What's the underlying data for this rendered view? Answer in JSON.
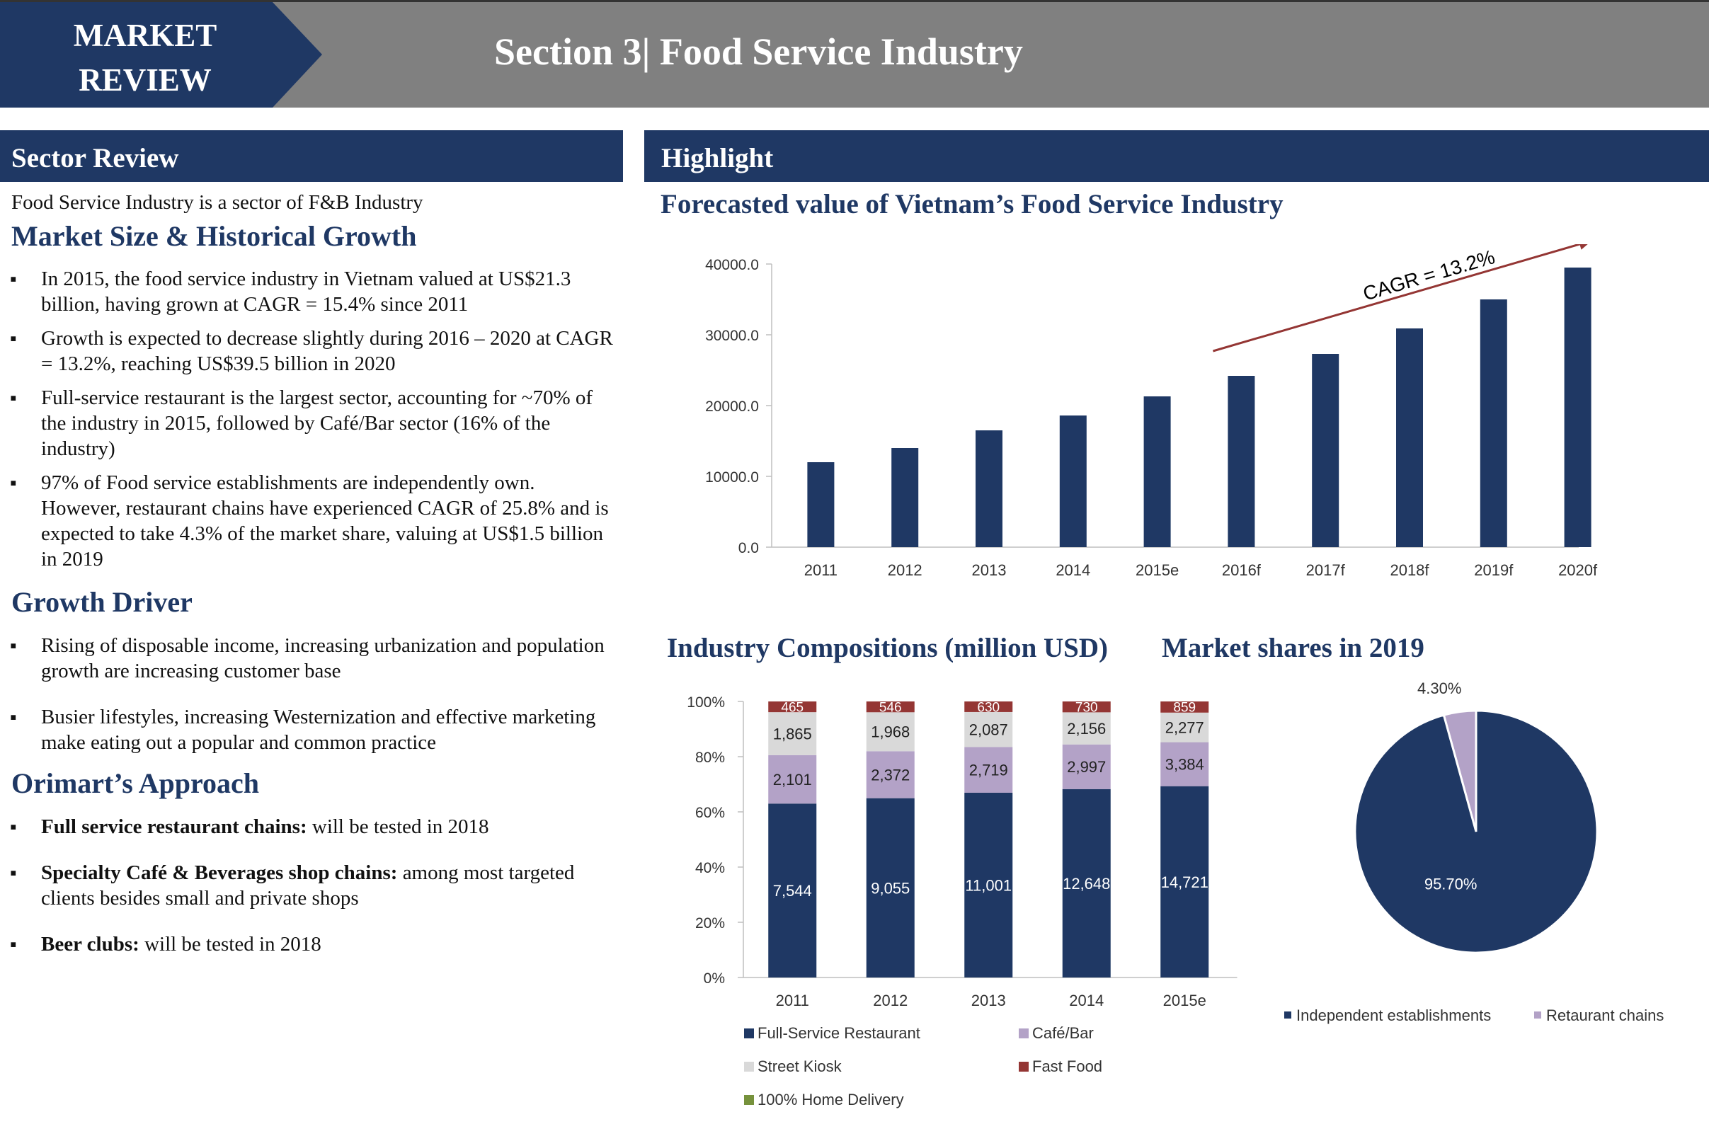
{
  "header": {
    "tag_line1": "MARKET",
    "tag_line2": "REVIEW",
    "title": "Section 3| Food Service Industry"
  },
  "left": {
    "heading": "Sector Review",
    "intro": "Food Service Industry is a sector of F&B Industry",
    "market_size": {
      "title": "Market Size & Historical Growth",
      "bullets": [
        "In 2015, the food service industry in Vietnam valued at US$21.3 billion, having grown at CAGR = 15.4% since 2011",
        "Growth is expected to decrease slightly during 2016 – 2020 at CAGR = 13.2%, reaching US$39.5 billion in 2020",
        "Full-service restaurant is the largest sector, accounting for ~70% of the industry in 2015, followed by Café/Bar sector (16% of the industry)",
        "97% of Food service establishments are independently own. However, restaurant chains have experienced CAGR of 25.8% and is expected to take 4.3% of the market share, valuing at US$1.5 billion in 2019"
      ]
    },
    "growth_driver": {
      "title": "Growth Driver",
      "bullets": [
        "Rising of disposable income, increasing urbanization and population growth are increasing customer base",
        "Busier lifestyles, increasing Westernization and effective marketing make eating out a popular and common practice"
      ]
    },
    "approach": {
      "title": "Orimart’s Approach",
      "items": [
        {
          "label": "Full service restaurant chains:",
          "text": " will be tested in 2018"
        },
        {
          "label": "Specialty Café & Beverages shop chains:",
          "text": " among most targeted clients besides small and private shops"
        },
        {
          "label": "Beer clubs:",
          "text": " will be tested in 2018"
        }
      ]
    }
  },
  "right": {
    "heading": "Highlight",
    "forecast_title": "Forecasted value of Vietnam’s Food Service Industry",
    "compositions_title": "Industry Compositions (million USD)",
    "shares_title": "Market shares in 2019"
  },
  "chart_data": [
    {
      "type": "bar",
      "title": "Forecasted value of Vietnam’s Food Service Industry",
      "categories": [
        "2011",
        "2012",
        "2013",
        "2014",
        "2015e",
        "2016f",
        "2017f",
        "2018f",
        "2019f",
        "2020f"
      ],
      "values": [
        12000,
        14000,
        16500,
        18600,
        21300,
        24200,
        27300,
        30900,
        35000,
        39500
      ],
      "ylim": [
        0,
        40000
      ],
      "yticks": [
        "0.0",
        "10000.0",
        "20000.0",
        "30000.0",
        "40000.0"
      ],
      "color": "#1f3864",
      "annotation": "CAGR = 13.2%",
      "annotation_color": "#943634",
      "grid": false
    },
    {
      "type": "bar",
      "stacked": "percent",
      "title": "Industry Compositions (million USD)",
      "categories": [
        "2011",
        "2012",
        "2013",
        "2014",
        "2015e"
      ],
      "series": [
        {
          "name": "Full-Service Restaurant",
          "color": "#1f3864",
          "values": [
            7544,
            9055,
            11001,
            12648,
            14721
          ],
          "labels": [
            "7,544",
            "9,055",
            "11,001",
            "12,648",
            "14,721"
          ]
        },
        {
          "name": "Café/Bar",
          "color": "#b3a2c7",
          "values": [
            2101,
            2372,
            2719,
            2997,
            3384
          ],
          "labels": [
            "2,101",
            "2,372",
            "2,719",
            "2,997",
            "3,384"
          ]
        },
        {
          "name": "Street Kiosk",
          "color": "#d9d9d9",
          "values": [
            1865,
            1968,
            2087,
            2156,
            2277
          ],
          "labels": [
            "1,865",
            "1,968",
            "2,087",
            "2,156",
            "2,277"
          ]
        },
        {
          "name": "Fast Food",
          "color": "#943634",
          "values": [
            465,
            546,
            630,
            730,
            859
          ],
          "labels": [
            "465",
            "546",
            "630",
            "730",
            "859"
          ]
        },
        {
          "name": "100% Home Delivery",
          "color": "#76923c",
          "values": [
            0,
            0,
            0,
            0,
            0
          ],
          "labels": [
            "",
            "",
            "",
            "",
            ""
          ]
        }
      ],
      "yticks": [
        "0%",
        "20%",
        "40%",
        "60%",
        "80%",
        "100%"
      ],
      "legend_position": "bottom"
    },
    {
      "type": "pie",
      "title": "Market shares in 2019",
      "slices": [
        {
          "name": "Independent establishments",
          "value": 95.7,
          "label": "95.70%",
          "color": "#1f3864"
        },
        {
          "name": "Retaurant chains",
          "value": 4.3,
          "label": "4.30%",
          "color": "#b3a2c7"
        }
      ],
      "legend_position": "bottom"
    }
  ]
}
